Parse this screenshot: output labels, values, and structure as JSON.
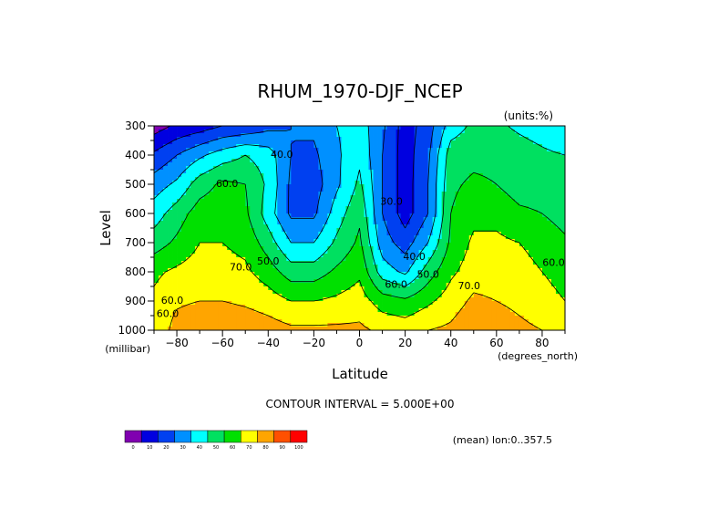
{
  "chart_data": {
    "type": "heatmap",
    "title": "RHUM_1970-DJF_NCEP",
    "units_label": "(units:%)",
    "xlabel": "Latitude",
    "ylabel": "Level",
    "x_units": "(degrees_north)",
    "y_units": "(millibar)",
    "xlim": [
      -90,
      90
    ],
    "ylim": [
      1000,
      300
    ],
    "x_ticks": [
      -80,
      -60,
      -40,
      -20,
      0,
      20,
      40,
      60,
      80
    ],
    "y_ticks": [
      300,
      400,
      500,
      600,
      700,
      800,
      900,
      1000
    ],
    "contour_interval_text": "CONTOUR INTERVAL = 5.000E+00",
    "footnote": "(mean) lon:0..357.5",
    "levels": [
      300,
      400,
      500,
      600,
      700,
      800,
      900,
      1000
    ],
    "latitudes": [
      -90,
      -80,
      -70,
      -60,
      -50,
      -40,
      -30,
      -20,
      -10,
      0,
      10,
      20,
      30,
      40,
      50,
      60,
      70,
      80,
      90
    ],
    "values": [
      [
        5,
        12,
        15,
        20,
        22,
        27,
        30,
        32,
        40,
        45,
        32,
        15,
        25,
        45,
        52,
        52,
        48,
        45,
        40
      ],
      [
        22,
        30,
        38,
        45,
        50,
        45,
        30,
        28,
        38,
        48,
        30,
        15,
        28,
        55,
        57,
        57,
        55,
        52,
        50
      ],
      [
        35,
        42,
        55,
        62,
        60,
        48,
        28,
        25,
        38,
        52,
        30,
        15,
        30,
        58,
        62,
        60,
        55,
        55,
        50
      ],
      [
        45,
        55,
        65,
        67,
        62,
        45,
        28,
        28,
        45,
        58,
        30,
        15,
        30,
        60,
        67,
        67,
        62,
        60,
        55
      ],
      [
        55,
        62,
        70,
        70,
        67,
        55,
        40,
        40,
        52,
        62,
        35,
        25,
        40,
        62,
        72,
        72,
        70,
        68,
        62
      ],
      [
        68,
        72,
        75,
        74,
        72,
        65,
        55,
        55,
        62,
        68,
        45,
        38,
        55,
        68,
        75,
        75,
        72,
        70,
        65
      ],
      [
        72,
        78,
        80,
        80,
        78,
        75,
        70,
        70,
        72,
        75,
        65,
        62,
        68,
        75,
        82,
        80,
        78,
        75,
        70
      ],
      [
        70,
        85,
        90,
        90,
        88,
        85,
        82,
        82,
        82,
        82,
        78,
        76,
        80,
        82,
        88,
        85,
        82,
        80,
        75
      ]
    ],
    "contour_labels": [
      {
        "text": "40.0",
        "lat": -34,
        "lev": 410
      },
      {
        "text": "30.0",
        "lat": 14,
        "lev": 570
      },
      {
        "text": "60.0",
        "lat": -58,
        "lev": 510
      },
      {
        "text": "50.0",
        "lat": -40,
        "lev": 775
      },
      {
        "text": "40.0",
        "lat": 24,
        "lev": 760
      },
      {
        "text": "50.0",
        "lat": 30,
        "lev": 820
      },
      {
        "text": "70.0",
        "lat": -52,
        "lev": 795
      },
      {
        "text": "60.0",
        "lat": 16,
        "lev": 855
      },
      {
        "text": "70.0",
        "lat": 48,
        "lev": 860
      },
      {
        "text": "60.0",
        "lat": 85,
        "lev": 780
      },
      {
        "text": "60.0",
        "lat": -82,
        "lev": 910
      },
      {
        "text": "60.0",
        "lat": -84,
        "lev": 955
      }
    ],
    "colorbar": {
      "bounds": [
        0,
        10,
        20,
        30,
        40,
        50,
        60,
        70,
        80,
        90,
        100
      ],
      "colors": [
        "#8000b0",
        "#0000e0",
        "#0040f0",
        "#0090ff",
        "#00ffff",
        "#00e060",
        "#00e000",
        "#ffff00",
        "#ffa500",
        "#ff5000",
        "#ff0000"
      ]
    }
  }
}
